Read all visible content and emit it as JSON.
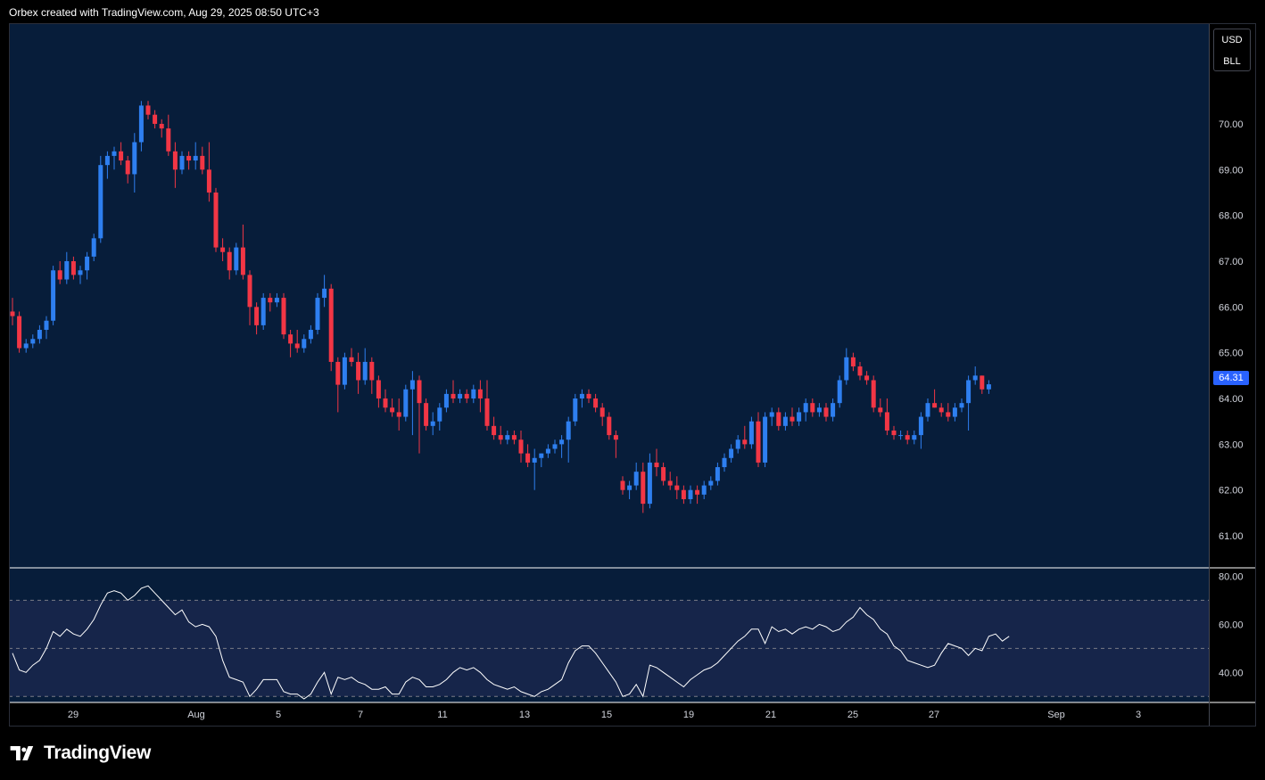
{
  "header": {
    "attribution": "Orbex created with TradingView.com, Aug 29, 2025 08:50 UTC+3"
  },
  "brand": {
    "name": "TradingView",
    "logo_icon": "tradingview-logo-icon"
  },
  "unit_box": {
    "currency": "USD",
    "unit": "BLL"
  },
  "colors": {
    "background": "#000000",
    "pane": "#071d3a",
    "rsi_band": "#16254a",
    "up": "#2e7ff0",
    "down": "#f23645",
    "rsi_line": "#ffffff",
    "price_tag": "#2962ff"
  },
  "chart_data": [
    {
      "type": "candlestick",
      "interval_hours": 4,
      "ylim": [
        60.3,
        72.2
      ],
      "y_ticks": [
        61.0,
        62.0,
        63.0,
        64.0,
        65.0,
        66.0,
        67.0,
        68.0,
        69.0,
        70.0
      ],
      "x_ticks": [
        "29",
        "Aug",
        "5",
        "7",
        "11",
        "13",
        "15",
        "19",
        "21",
        "25",
        "27",
        "Sep",
        "3"
      ],
      "last_price": "64.31",
      "candles": [
        [
          65.9,
          66.2,
          65.6,
          65.8
        ],
        [
          65.8,
          65.9,
          65.0,
          65.1
        ],
        [
          65.1,
          65.3,
          65.0,
          65.2
        ],
        [
          65.2,
          65.4,
          65.1,
          65.3
        ],
        [
          65.3,
          65.6,
          65.2,
          65.5
        ],
        [
          65.5,
          65.8,
          65.3,
          65.7
        ],
        [
          65.7,
          66.9,
          65.6,
          66.8
        ],
        [
          66.8,
          67.0,
          66.5,
          66.6
        ],
        [
          66.6,
          67.2,
          66.5,
          67.0
        ],
        [
          67.0,
          67.1,
          66.6,
          66.7
        ],
        [
          66.7,
          66.9,
          66.5,
          66.8
        ],
        [
          66.8,
          67.2,
          66.6,
          67.1
        ],
        [
          67.1,
          67.6,
          67.0,
          67.5
        ],
        [
          67.5,
          69.3,
          67.4,
          69.1
        ],
        [
          69.1,
          69.4,
          68.8,
          69.3
        ],
        [
          69.3,
          69.5,
          69.0,
          69.4
        ],
        [
          69.4,
          69.6,
          69.1,
          69.2
        ],
        [
          69.2,
          69.3,
          68.7,
          68.9
        ],
        [
          68.9,
          69.8,
          68.5,
          69.6
        ],
        [
          69.6,
          70.5,
          69.4,
          70.4
        ],
        [
          70.4,
          70.5,
          70.1,
          70.2
        ],
        [
          70.2,
          70.3,
          69.9,
          70.0
        ],
        [
          70.0,
          70.1,
          69.7,
          69.9
        ],
        [
          69.9,
          70.2,
          69.3,
          69.4
        ],
        [
          69.4,
          69.6,
          68.6,
          69.0
        ],
        [
          69.0,
          69.4,
          68.9,
          69.3
        ],
        [
          69.3,
          69.4,
          69.0,
          69.2
        ],
        [
          69.2,
          69.6,
          69.0,
          69.3
        ],
        [
          69.3,
          69.5,
          68.9,
          69.0
        ],
        [
          69.0,
          69.6,
          68.3,
          68.5
        ],
        [
          68.5,
          68.6,
          67.2,
          67.3
        ],
        [
          67.3,
          67.5,
          67.0,
          67.2
        ],
        [
          67.2,
          67.3,
          66.6,
          66.8
        ],
        [
          66.8,
          67.4,
          66.7,
          67.3
        ],
        [
          67.3,
          67.8,
          66.6,
          66.7
        ],
        [
          66.7,
          66.8,
          65.6,
          66.0
        ],
        [
          66.0,
          66.1,
          65.4,
          65.6
        ],
        [
          65.6,
          66.3,
          65.5,
          66.2
        ],
        [
          66.2,
          66.3,
          65.9,
          66.1
        ],
        [
          66.1,
          66.3,
          66.0,
          66.2
        ],
        [
          66.2,
          66.3,
          65.3,
          65.4
        ],
        [
          65.4,
          65.5,
          64.9,
          65.2
        ],
        [
          65.2,
          65.5,
          65.0,
          65.1
        ],
        [
          65.1,
          65.4,
          65.0,
          65.3
        ],
        [
          65.3,
          65.6,
          65.2,
          65.5
        ],
        [
          65.5,
          66.3,
          65.4,
          66.2
        ],
        [
          66.2,
          66.7,
          66.0,
          66.4
        ],
        [
          66.4,
          66.5,
          64.6,
          64.8
        ],
        [
          64.8,
          64.9,
          63.7,
          64.3
        ],
        [
          64.3,
          65.0,
          64.2,
          64.9
        ],
        [
          64.9,
          65.1,
          64.7,
          64.8
        ],
        [
          64.8,
          65.0,
          64.1,
          64.4
        ],
        [
          64.4,
          65.1,
          64.3,
          64.8
        ],
        [
          64.8,
          64.9,
          64.1,
          64.4
        ],
        [
          64.4,
          64.5,
          63.8,
          64.0
        ],
        [
          64.0,
          64.2,
          63.7,
          63.8
        ],
        [
          63.8,
          64.0,
          63.6,
          63.7
        ],
        [
          63.7,
          64.0,
          63.3,
          63.6
        ],
        [
          63.6,
          64.3,
          63.5,
          64.2
        ],
        [
          64.2,
          64.6,
          63.2,
          64.4
        ],
        [
          64.4,
          64.5,
          62.8,
          63.9
        ],
        [
          63.9,
          64.0,
          63.3,
          63.4
        ],
        [
          63.4,
          63.7,
          63.2,
          63.5
        ],
        [
          63.5,
          63.9,
          63.3,
          63.8
        ],
        [
          63.8,
          64.2,
          63.7,
          64.1
        ],
        [
          64.1,
          64.4,
          63.9,
          64.0
        ],
        [
          64.0,
          64.2,
          63.9,
          64.1
        ],
        [
          64.1,
          64.2,
          63.9,
          64.0
        ],
        [
          64.0,
          64.3,
          63.9,
          64.2
        ],
        [
          64.2,
          64.4,
          63.7,
          64.0
        ],
        [
          64.0,
          64.4,
          63.3,
          63.4
        ],
        [
          63.4,
          63.6,
          63.1,
          63.2
        ],
        [
          63.2,
          63.4,
          63.0,
          63.1
        ],
        [
          63.1,
          63.3,
          63.0,
          63.2
        ],
        [
          63.2,
          63.3,
          63.0,
          63.1
        ],
        [
          63.1,
          63.3,
          62.6,
          62.8
        ],
        [
          62.8,
          63.0,
          62.5,
          62.6
        ],
        [
          62.6,
          62.9,
          62.0,
          62.7
        ],
        [
          62.7,
          62.8,
          62.5,
          62.8
        ],
        [
          62.8,
          63.0,
          62.7,
          62.9
        ],
        [
          62.9,
          63.1,
          62.8,
          63.0
        ],
        [
          63.0,
          63.2,
          62.7,
          63.1
        ],
        [
          63.1,
          63.6,
          62.6,
          63.5
        ],
        [
          63.5,
          64.1,
          63.4,
          64.0
        ],
        [
          64.0,
          64.2,
          63.8,
          64.1
        ],
        [
          64.1,
          64.2,
          63.9,
          64.0
        ],
        [
          64.0,
          64.1,
          63.7,
          63.8
        ],
        [
          63.8,
          63.9,
          63.4,
          63.6
        ],
        [
          63.6,
          63.7,
          63.1,
          63.2
        ],
        [
          63.2,
          63.3,
          62.7,
          63.1
        ],
        [
          62.2,
          62.3,
          61.9,
          62.0
        ],
        [
          62.0,
          62.2,
          61.8,
          62.1
        ],
        [
          62.1,
          62.6,
          62.0,
          62.4
        ],
        [
          62.4,
          62.6,
          61.5,
          61.7
        ],
        [
          61.7,
          62.8,
          61.6,
          62.6
        ],
        [
          62.6,
          62.9,
          62.3,
          62.5
        ],
        [
          62.5,
          62.6,
          62.1,
          62.2
        ],
        [
          62.2,
          62.4,
          62.0,
          62.1
        ],
        [
          62.1,
          62.3,
          61.8,
          62.0
        ],
        [
          62.0,
          62.1,
          61.7,
          61.8
        ],
        [
          61.8,
          62.1,
          61.7,
          62.0
        ],
        [
          62.0,
          62.1,
          61.7,
          61.9
        ],
        [
          61.9,
          62.2,
          61.8,
          62.1
        ],
        [
          62.1,
          62.3,
          62.0,
          62.2
        ],
        [
          62.2,
          62.6,
          62.1,
          62.5
        ],
        [
          62.5,
          62.8,
          62.4,
          62.7
        ],
        [
          62.7,
          63.0,
          62.6,
          62.9
        ],
        [
          62.9,
          63.2,
          62.8,
          63.1
        ],
        [
          63.1,
          63.4,
          62.9,
          63.0
        ],
        [
          63.0,
          63.6,
          62.9,
          63.5
        ],
        [
          63.5,
          63.7,
          62.5,
          62.6
        ],
        [
          62.6,
          63.7,
          62.5,
          63.6
        ],
        [
          63.6,
          63.8,
          63.4,
          63.7
        ],
        [
          63.7,
          63.8,
          63.3,
          63.4
        ],
        [
          63.4,
          63.7,
          63.3,
          63.6
        ],
        [
          63.6,
          63.8,
          63.4,
          63.5
        ],
        [
          63.5,
          63.8,
          63.4,
          63.7
        ],
        [
          63.7,
          64.0,
          63.5,
          63.9
        ],
        [
          63.9,
          64.0,
          63.6,
          63.7
        ],
        [
          63.7,
          63.9,
          63.6,
          63.8
        ],
        [
          63.8,
          63.9,
          63.5,
          63.6
        ],
        [
          63.6,
          64.0,
          63.5,
          63.9
        ],
        [
          63.9,
          64.5,
          63.8,
          64.4
        ],
        [
          64.4,
          65.1,
          64.3,
          64.9
        ],
        [
          64.9,
          65.0,
          64.6,
          64.7
        ],
        [
          64.7,
          64.8,
          64.4,
          64.5
        ],
        [
          64.5,
          64.6,
          64.3,
          64.4
        ],
        [
          64.4,
          64.5,
          63.7,
          63.8
        ],
        [
          63.8,
          64.0,
          63.6,
          63.7
        ],
        [
          63.7,
          64.0,
          63.2,
          63.3
        ],
        [
          63.3,
          63.4,
          63.1,
          63.2
        ],
        [
          63.2,
          63.3,
          63.1,
          63.2
        ],
        [
          63.2,
          63.3,
          63.0,
          63.1
        ],
        [
          63.1,
          63.3,
          63.0,
          63.2
        ],
        [
          63.2,
          63.7,
          62.9,
          63.6
        ],
        [
          63.6,
          64.0,
          63.5,
          63.9
        ],
        [
          63.9,
          64.2,
          63.8,
          63.8
        ],
        [
          63.8,
          63.9,
          63.6,
          63.7
        ],
        [
          63.7,
          63.9,
          63.5,
          63.6
        ],
        [
          63.6,
          63.9,
          63.5,
          63.8
        ],
        [
          63.8,
          64.0,
          63.7,
          63.9
        ],
        [
          63.9,
          64.5,
          63.3,
          64.4
        ],
        [
          64.4,
          64.7,
          64.3,
          64.5
        ],
        [
          64.5,
          64.5,
          64.1,
          64.2
        ],
        [
          64.2,
          64.4,
          64.1,
          64.31
        ]
      ]
    },
    {
      "type": "line",
      "indicator": "RSI",
      "ylim": [
        27.5,
        83.5
      ],
      "y_ticks": [
        40.0,
        60.0,
        80.0
      ],
      "bands": [
        30,
        50,
        70
      ],
      "values": [
        48,
        41,
        40,
        43,
        45,
        50,
        57,
        55,
        58,
        56,
        55,
        58,
        62,
        68,
        73,
        74,
        73,
        70,
        72,
        75,
        76,
        73,
        70,
        67,
        64,
        66,
        61,
        59,
        60,
        59,
        55,
        45,
        38,
        37,
        36,
        30,
        33,
        37,
        37,
        37,
        32,
        31,
        31,
        29,
        31,
        36,
        40,
        31,
        38,
        37,
        38,
        36,
        35,
        33,
        33,
        34,
        31,
        31,
        36,
        38,
        37,
        34,
        34,
        35,
        37,
        40,
        42,
        41,
        42,
        40,
        37,
        35,
        34,
        33,
        34,
        32,
        31,
        30,
        32,
        33,
        35,
        37,
        44,
        49,
        51,
        51,
        48,
        44,
        40,
        36,
        30,
        31,
        35,
        30,
        43,
        42,
        40,
        38,
        36,
        34,
        37,
        39,
        41,
        42,
        44,
        47,
        50,
        53,
        55,
        58,
        58,
        52,
        59,
        57,
        58,
        56,
        58,
        59,
        58,
        60,
        59,
        57,
        58,
        61,
        63,
        67,
        64,
        62,
        58,
        56,
        51,
        49,
        45,
        44,
        43,
        42,
        43,
        48,
        52,
        51,
        50,
        47,
        50,
        49,
        55,
        56,
        53,
        55
      ]
    }
  ]
}
